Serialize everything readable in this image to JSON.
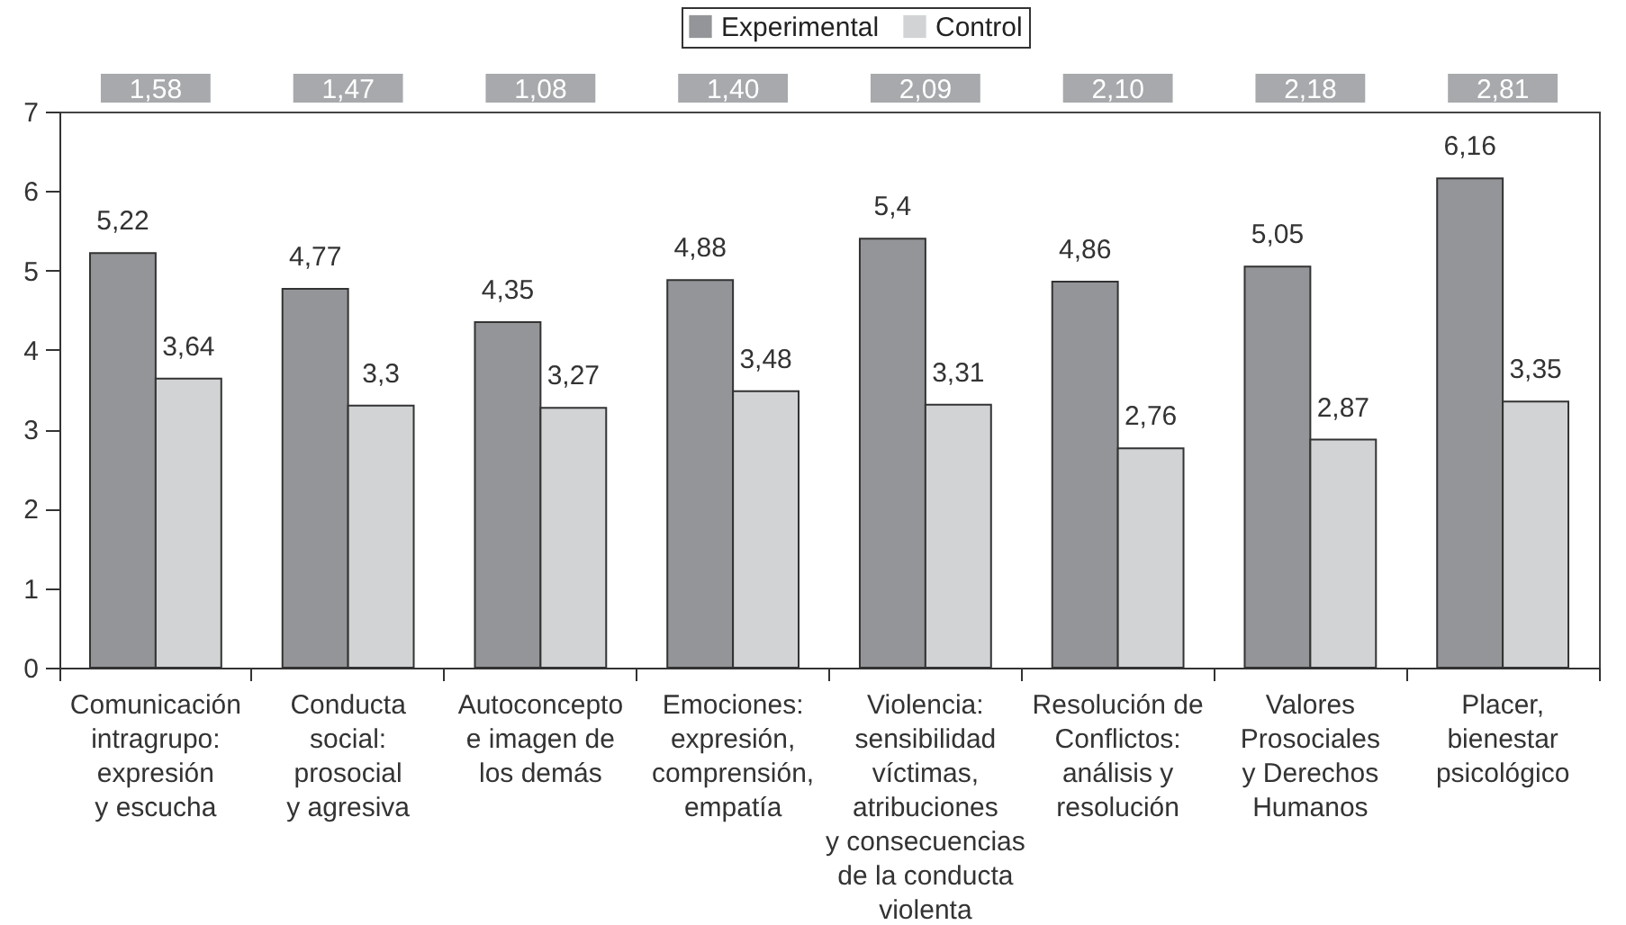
{
  "chart_data": {
    "type": "bar",
    "categories": [
      "Comunicación\nintragrupo:\nexpresión\ny escucha",
      "Conducta\nsocial:\nprosocial\ny agresiva",
      "Autoconcepto\ne imagen de\nlos demás",
      "Emociones:\nexpresión,\ncomprensión,\nempatía",
      "Violencia:\nsensibilidad\nvíctimas,\natribuciones\ny consecuencias\nde la conducta\nviolenta",
      "Resolución de\nConflictos:\nanálisis y\nresolución",
      "Valores\nProsociales\ny Derechos\nHumanos",
      "Placer,\nbienestar\npsicológico"
    ],
    "series": [
      {
        "name": "Experimental",
        "color": "#939598",
        "values": [
          5.22,
          4.77,
          4.35,
          4.88,
          5.4,
          4.86,
          5.05,
          6.16
        ],
        "value_labels": [
          "5,22",
          "4,77",
          "4,35",
          "4,88",
          "5,4",
          "4,86",
          "5,05",
          "6,16"
        ]
      },
      {
        "name": "Control",
        "color": "#d1d3d4",
        "values": [
          3.64,
          3.3,
          3.27,
          3.48,
          3.31,
          2.76,
          2.87,
          3.35
        ],
        "value_labels": [
          "3,64",
          "3,3",
          "3,27",
          "3,48",
          "3,31",
          "2,76",
          "2,87",
          "3,35"
        ]
      }
    ],
    "annotations": [
      "1,58",
      "1,47",
      "1,08",
      "1,40",
      "2,09",
      "2,10",
      "2,18",
      "2,81"
    ],
    "ylim": [
      0,
      7
    ],
    "yticks": [
      0,
      1,
      2,
      3,
      4,
      5,
      6,
      7
    ],
    "grid": false,
    "legend": "top"
  }
}
